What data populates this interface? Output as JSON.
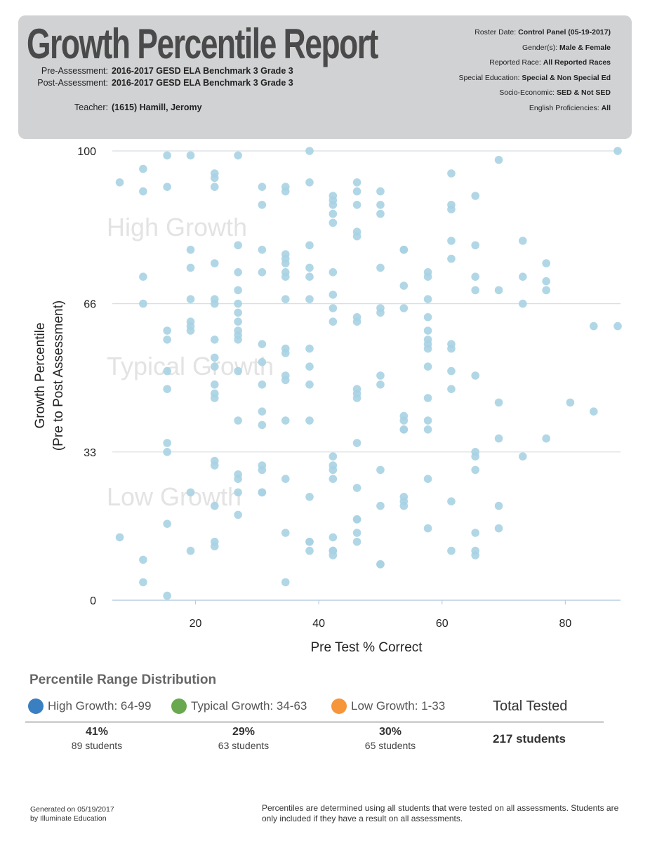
{
  "header": {
    "title": "Growth Percentile Report",
    "pre_label": "Pre-Assessment:",
    "pre_value": "2016-2017 GESD ELA Benchmark 3 Grade 3",
    "post_label": "Post-Assessment:",
    "post_value": "2016-2017 GESD ELA Benchmark 3 Grade 3",
    "teacher_label": "Teacher:",
    "teacher_value": "(1615) Hamill, Jeromy",
    "meta": [
      {
        "label": "Roster Date:",
        "value": "Control Panel (05-19-2017)"
      },
      {
        "label": "Gender(s):",
        "value": "Male & Female"
      },
      {
        "label": "Reported Race:",
        "value": "All Reported Races"
      },
      {
        "label": "Special Education:",
        "value": "Special & Non Special Ed"
      },
      {
        "label": "Socio-Economic:",
        "value": "SED & Not SED"
      },
      {
        "label": "English Proficiencies:",
        "value": "All"
      }
    ]
  },
  "chart_data": {
    "type": "scatter",
    "xlabel": "Pre Test % Correct",
    "ylabel_line1": "Growth Percentile",
    "ylabel_line2": "(Pre to Post Assessment)",
    "xlim": [
      6.5,
      88.5
    ],
    "ylim": [
      0,
      100
    ],
    "xticks": [
      20,
      40,
      60,
      80
    ],
    "yticks": [
      0,
      33,
      66,
      100
    ],
    "zone_labels": [
      {
        "text": "High Growth",
        "y": 83
      },
      {
        "text": "Typical Growth",
        "y": 52
      },
      {
        "text": "Low Growth",
        "y": 23
      }
    ],
    "point_color": "#a9d3e3",
    "series": [
      {
        "points": [
          [
            7.7,
            93
          ],
          [
            7.7,
            14
          ],
          [
            11.5,
            96
          ],
          [
            11.5,
            91
          ],
          [
            11.5,
            72
          ],
          [
            11.5,
            66
          ],
          [
            11.5,
            9
          ],
          [
            11.5,
            4
          ],
          [
            15.4,
            99
          ],
          [
            15.4,
            92
          ],
          [
            15.4,
            60
          ],
          [
            15.4,
            58
          ],
          [
            15.4,
            51
          ],
          [
            15.4,
            47
          ],
          [
            15.4,
            35
          ],
          [
            15.4,
            33
          ],
          [
            15.4,
            17
          ],
          [
            15.4,
            1
          ],
          [
            19.2,
            99
          ],
          [
            19.2,
            78
          ],
          [
            19.2,
            74
          ],
          [
            19.2,
            67
          ],
          [
            19.2,
            62
          ],
          [
            19.2,
            61
          ],
          [
            19.2,
            60
          ],
          [
            19.2,
            24
          ],
          [
            19.2,
            11
          ],
          [
            23.1,
            95
          ],
          [
            23.1,
            94
          ],
          [
            23.1,
            92
          ],
          [
            23.1,
            75
          ],
          [
            23.1,
            67
          ],
          [
            23.1,
            66
          ],
          [
            23.1,
            58
          ],
          [
            23.1,
            54
          ],
          [
            23.1,
            52
          ],
          [
            23.1,
            48
          ],
          [
            23.1,
            46
          ],
          [
            23.1,
            45
          ],
          [
            23.1,
            31
          ],
          [
            23.1,
            30
          ],
          [
            23.1,
            21
          ],
          [
            23.1,
            13
          ],
          [
            23.1,
            12
          ],
          [
            26.9,
            99
          ],
          [
            26.9,
            79
          ],
          [
            26.9,
            73
          ],
          [
            26.9,
            69
          ],
          [
            26.9,
            66
          ],
          [
            26.9,
            64
          ],
          [
            26.9,
            62
          ],
          [
            26.9,
            60
          ],
          [
            26.9,
            59
          ],
          [
            26.9,
            58
          ],
          [
            26.9,
            51
          ],
          [
            26.9,
            40
          ],
          [
            26.9,
            28
          ],
          [
            26.9,
            27
          ],
          [
            26.9,
            24
          ],
          [
            26.9,
            19
          ],
          [
            30.8,
            92
          ],
          [
            30.8,
            88
          ],
          [
            30.8,
            78
          ],
          [
            30.8,
            73
          ],
          [
            30.8,
            57
          ],
          [
            30.8,
            53
          ],
          [
            30.8,
            48
          ],
          [
            30.8,
            42
          ],
          [
            30.8,
            39
          ],
          [
            30.8,
            30
          ],
          [
            30.8,
            29
          ],
          [
            30.8,
            24
          ],
          [
            30.8,
            24
          ],
          [
            34.6,
            92
          ],
          [
            34.6,
            91
          ],
          [
            34.6,
            77
          ],
          [
            34.6,
            76
          ],
          [
            34.6,
            75
          ],
          [
            34.6,
            73
          ],
          [
            34.6,
            72
          ],
          [
            34.6,
            67
          ],
          [
            34.6,
            56
          ],
          [
            34.6,
            55
          ],
          [
            34.6,
            50
          ],
          [
            34.6,
            49
          ],
          [
            34.6,
            40
          ],
          [
            34.6,
            27
          ],
          [
            34.6,
            15
          ],
          [
            34.6,
            4
          ],
          [
            38.5,
            100
          ],
          [
            38.5,
            93
          ],
          [
            38.5,
            79
          ],
          [
            38.5,
            74
          ],
          [
            38.5,
            72
          ],
          [
            38.5,
            67
          ],
          [
            38.5,
            56
          ],
          [
            38.5,
            52
          ],
          [
            38.5,
            48
          ],
          [
            38.5,
            40
          ],
          [
            38.5,
            23
          ],
          [
            38.5,
            13
          ],
          [
            38.5,
            13
          ],
          [
            38.5,
            11
          ],
          [
            42.3,
            90
          ],
          [
            42.3,
            89
          ],
          [
            42.3,
            88
          ],
          [
            42.3,
            86
          ],
          [
            42.3,
            84
          ],
          [
            42.3,
            73
          ],
          [
            42.3,
            68
          ],
          [
            42.3,
            65
          ],
          [
            42.3,
            62
          ],
          [
            42.3,
            32
          ],
          [
            42.3,
            30
          ],
          [
            42.3,
            29
          ],
          [
            42.3,
            27
          ],
          [
            42.3,
            14
          ],
          [
            42.3,
            11
          ],
          [
            42.3,
            11
          ],
          [
            42.3,
            10
          ],
          [
            46.2,
            93
          ],
          [
            46.2,
            91
          ],
          [
            46.2,
            88
          ],
          [
            46.2,
            82
          ],
          [
            46.2,
            81
          ],
          [
            46.2,
            63
          ],
          [
            46.2,
            62
          ],
          [
            46.2,
            47
          ],
          [
            46.2,
            46
          ],
          [
            46.2,
            45
          ],
          [
            46.2,
            35
          ],
          [
            46.2,
            25
          ],
          [
            46.2,
            18
          ],
          [
            46.2,
            18
          ],
          [
            46.2,
            15
          ],
          [
            46.2,
            13
          ],
          [
            50,
            91
          ],
          [
            50,
            88
          ],
          [
            50,
            86
          ],
          [
            50,
            74
          ],
          [
            50,
            65
          ],
          [
            50,
            64
          ],
          [
            50,
            50
          ],
          [
            50,
            48
          ],
          [
            50,
            29
          ],
          [
            50,
            21
          ],
          [
            50,
            8
          ],
          [
            50,
            8
          ],
          [
            53.8,
            78
          ],
          [
            53.8,
            78
          ],
          [
            53.8,
            70
          ],
          [
            53.8,
            65
          ],
          [
            53.8,
            41
          ],
          [
            53.8,
            40
          ],
          [
            53.8,
            38
          ],
          [
            53.8,
            38
          ],
          [
            53.8,
            23
          ],
          [
            53.8,
            22
          ],
          [
            53.8,
            21
          ],
          [
            57.7,
            73
          ],
          [
            57.7,
            72
          ],
          [
            57.7,
            67
          ],
          [
            57.7,
            63
          ],
          [
            57.7,
            60
          ],
          [
            57.7,
            58
          ],
          [
            57.7,
            57
          ],
          [
            57.7,
            56
          ],
          [
            57.7,
            52
          ],
          [
            57.7,
            45
          ],
          [
            57.7,
            40
          ],
          [
            57.7,
            38
          ],
          [
            57.7,
            27
          ],
          [
            57.7,
            16
          ],
          [
            61.5,
            95
          ],
          [
            61.5,
            88
          ],
          [
            61.5,
            87
          ],
          [
            61.5,
            80
          ],
          [
            61.5,
            76
          ],
          [
            61.5,
            57
          ],
          [
            61.5,
            56
          ],
          [
            61.5,
            51
          ],
          [
            61.5,
            47
          ],
          [
            61.5,
            22
          ],
          [
            61.5,
            11
          ],
          [
            65.4,
            90
          ],
          [
            65.4,
            79
          ],
          [
            65.4,
            72
          ],
          [
            65.4,
            69
          ],
          [
            65.4,
            50
          ],
          [
            65.4,
            33
          ],
          [
            65.4,
            32
          ],
          [
            65.4,
            29
          ],
          [
            65.4,
            15
          ],
          [
            65.4,
            11
          ],
          [
            65.4,
            10
          ],
          [
            69.2,
            98
          ],
          [
            69.2,
            69
          ],
          [
            69.2,
            44
          ],
          [
            69.2,
            36
          ],
          [
            69.2,
            21
          ],
          [
            69.2,
            16
          ],
          [
            73.1,
            80
          ],
          [
            73.1,
            72
          ],
          [
            73.1,
            66
          ],
          [
            73.1,
            32
          ],
          [
            76.9,
            75
          ],
          [
            76.9,
            71
          ],
          [
            76.9,
            69
          ],
          [
            76.9,
            36
          ],
          [
            80.8,
            44
          ],
          [
            84.6,
            61
          ],
          [
            84.6,
            42
          ],
          [
            88.5,
            100
          ],
          [
            88.5,
            61
          ]
        ]
      }
    ]
  },
  "distribution": {
    "title": "Percentile Range Distribution",
    "legend": [
      {
        "label": "High Growth: 64-99",
        "color": "#3a7fc1"
      },
      {
        "label": "Typical Growth: 34-63",
        "color": "#6aa84f"
      },
      {
        "label": "Low Growth: 1-33",
        "color": "#f6953a"
      }
    ],
    "total_label": "Total Tested",
    "stats": [
      {
        "pct": "41%",
        "count": "89 students"
      },
      {
        "pct": "29%",
        "count": "63 students"
      },
      {
        "pct": "30%",
        "count": "65 students"
      }
    ],
    "total_value": "217 students"
  },
  "footer": {
    "generated_line1": "Generated on 05/19/2017",
    "generated_line2": "by Illuminate Education",
    "note": "Percentiles are determined using all students that were tested on all assessments. Students are only included if they have a result on all assessments."
  }
}
